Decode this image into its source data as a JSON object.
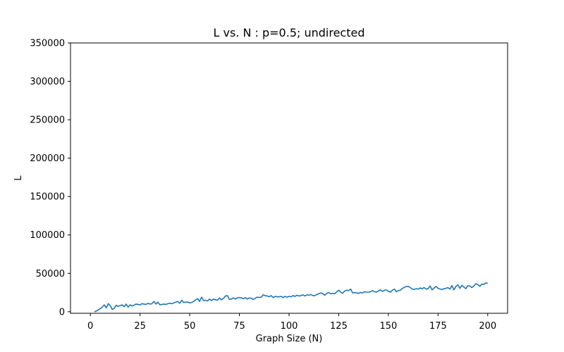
{
  "chart_data": {
    "type": "line",
    "title": "L vs. N : p=0.5; undirected",
    "xlabel": "Graph Size (N)",
    "ylabel": "L",
    "xlim": [
      -10,
      210
    ],
    "ylim": [
      -2000,
      350000
    ],
    "xticks": [
      0,
      25,
      50,
      75,
      100,
      125,
      150,
      175,
      200
    ],
    "yticks": [
      0,
      50000,
      100000,
      150000,
      200000,
      250000,
      300000,
      350000
    ],
    "grid": false,
    "colors": {
      "line": "#1f77b4"
    },
    "series": [
      {
        "x": [
          2,
          3,
          4,
          5,
          6,
          7,
          8,
          9,
          10,
          11,
          12,
          13,
          14,
          15,
          16,
          17,
          18,
          19,
          20,
          21,
          22,
          23,
          24,
          25,
          26,
          27,
          28,
          29,
          30,
          31,
          32,
          33,
          34,
          35,
          36,
          37,
          38,
          39,
          40,
          41,
          42,
          43,
          44,
          45,
          46,
          47,
          48,
          49,
          50,
          51,
          52,
          53,
          54,
          55,
          56,
          57,
          58,
          59,
          60,
          61,
          62,
          63,
          64,
          65,
          66,
          67,
          68,
          69,
          70,
          71,
          72,
          73,
          74,
          75,
          76,
          77,
          78,
          79,
          80,
          81,
          82,
          83,
          84,
          85,
          86,
          87,
          88,
          89,
          90,
          91,
          92,
          93,
          94,
          95,
          96,
          97,
          98,
          99,
          100,
          101,
          102,
          103,
          104,
          105,
          106,
          107,
          108,
          109,
          110,
          111,
          112,
          113,
          114,
          115,
          116,
          117,
          118,
          119,
          120,
          121,
          122,
          123,
          124,
          125,
          126,
          127,
          128,
          129,
          130,
          131,
          132,
          133,
          134,
          135,
          136,
          137,
          138,
          139,
          140,
          141,
          142,
          143,
          144,
          145,
          146,
          147,
          148,
          149,
          150,
          151,
          152,
          153,
          154,
          155,
          156,
          157,
          158,
          159,
          160,
          161,
          162,
          163,
          164,
          165,
          166,
          167,
          168,
          169,
          170,
          171,
          172,
          173,
          174,
          175,
          176,
          177,
          178,
          179,
          180,
          181,
          182,
          183,
          184,
          185,
          186,
          187,
          188,
          189,
          190,
          191,
          192,
          193,
          194,
          195,
          196,
          197,
          198,
          199,
          200
        ],
        "y": [
          0,
          800,
          2500,
          4000,
          6000,
          9000,
          5000,
          10500,
          8000,
          3000,
          4500,
          8500,
          7000,
          8000,
          9000,
          6500,
          10000,
          6000,
          9000,
          7500,
          8500,
          10000,
          9500,
          9000,
          10500,
          10000,
          9500,
          11000,
          10000,
          10500,
          13500,
          10000,
          12500,
          9000,
          9500,
          10000,
          9500,
          10500,
          11000,
          10500,
          11500,
          12500,
          13500,
          11000,
          15000,
          12000,
          12500,
          12500,
          11500,
          12000,
          13500,
          15500,
          17000,
          13500,
          19000,
          14500,
          15000,
          14000,
          16500,
          14500,
          16500,
          15500,
          15000,
          18000,
          15500,
          17500,
          20500,
          21000,
          16000,
          16500,
          18000,
          16500,
          18000,
          18500,
          18000,
          17000,
          18500,
          16500,
          18000,
          17500,
          16000,
          17500,
          19000,
          18500,
          19000,
          22000,
          21000,
          20500,
          19500,
          21000,
          18500,
          20000,
          19500,
          19500,
          20000,
          18500,
          20000,
          19000,
          20000,
          19500,
          21000,
          20000,
          21500,
          20500,
          21000,
          22000,
          20500,
          22000,
          21500,
          22500,
          21000,
          21000,
          22500,
          23500,
          24500,
          23500,
          21500,
          24000,
          25000,
          23500,
          24000,
          23500,
          26000,
          28000,
          25500,
          24000,
          27000,
          28000,
          27500,
          29500,
          24500,
          25000,
          24500,
          24000,
          25000,
          24500,
          26000,
          25500,
          25500,
          26000,
          27500,
          26000,
          25500,
          27000,
          28500,
          26500,
          28000,
          28500,
          26500,
          25500,
          28000,
          29500,
          26000,
          27500,
          28000,
          30500,
          31500,
          33000,
          33000,
          31500,
          29500,
          29000,
          30000,
          29500,
          31000,
          30000,
          31500,
          29500,
          30000,
          33500,
          28500,
          31000,
          33000,
          30500,
          29500,
          29000,
          30000,
          30500,
          31500,
          29500,
          34000,
          28500,
          33000,
          35000,
          30500,
          34500,
          32000,
          30000,
          34000,
          33500,
          31500,
          33500,
          36500,
          35500,
          33000,
          36000,
          35500,
          37500,
          37000
        ]
      }
    ]
  }
}
